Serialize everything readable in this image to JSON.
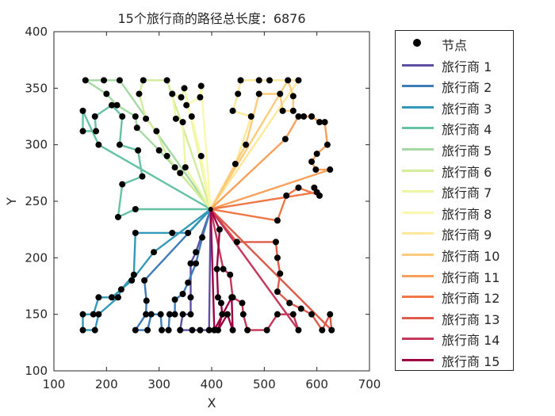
{
  "chart_data": {
    "type": "line",
    "title": "15个旅行商的路径总长度：6876",
    "xlabel": "X",
    "ylabel": "Y",
    "xlim": [
      100,
      700
    ],
    "ylim": [
      100,
      400
    ],
    "xticks": [
      100,
      200,
      300,
      400,
      500,
      600,
      700
    ],
    "yticks": [
      100,
      150,
      200,
      250,
      300,
      350,
      400
    ],
    "depot": [
      398,
      243
    ],
    "legend_position": "outside-right",
    "legend_node_label": "节点",
    "series": [
      {
        "name": "旅行商 1",
        "color": "#5e4fa2",
        "points": [
          [
            398,
            243
          ],
          [
            370,
            205
          ],
          [
            360,
            195
          ],
          [
            360,
            165
          ],
          [
            360,
            150
          ],
          [
            345,
            150
          ],
          [
            340,
            136
          ],
          [
            363,
            136
          ],
          [
            378,
            136
          ],
          [
            395,
            136
          ],
          [
            398,
            243
          ]
        ]
      },
      {
        "name": "旅行商 2",
        "color": "#3d7cb9",
        "points": [
          [
            398,
            243
          ],
          [
            382,
            218
          ],
          [
            370,
            195
          ],
          [
            355,
            178
          ],
          [
            345,
            168
          ],
          [
            330,
            163
          ],
          [
            330,
            150
          ],
          [
            320,
            150
          ],
          [
            318,
            136
          ],
          [
            305,
            136
          ],
          [
            303,
            150
          ],
          [
            285,
            150
          ],
          [
            278,
            136
          ],
          [
            255,
            136
          ],
          [
            275,
            150
          ],
          [
            276,
            162
          ],
          [
            272,
            180
          ],
          [
            398,
            243
          ]
        ]
      },
      {
        "name": "旅行商 3",
        "color": "#3498b8",
        "points": [
          [
            398,
            243
          ],
          [
            355,
            222
          ],
          [
            325,
            222
          ],
          [
            255,
            222
          ],
          [
            252,
            185
          ],
          [
            228,
            172
          ],
          [
            222,
            165
          ],
          [
            185,
            150
          ],
          [
            178,
            136
          ],
          [
            155,
            136
          ],
          [
            155,
            150
          ],
          [
            175,
            150
          ],
          [
            185,
            165
          ],
          [
            210,
            165
          ],
          [
            248,
            180
          ],
          [
            290,
            205
          ],
          [
            398,
            243
          ]
        ]
      },
      {
        "name": "旅行商 4",
        "color": "#66c2a5",
        "points": [
          [
            398,
            243
          ],
          [
            255,
            243
          ],
          [
            222,
            236
          ],
          [
            230,
            265
          ],
          [
            268,
            272
          ],
          [
            260,
            295
          ],
          [
            225,
            300
          ],
          [
            230,
            325
          ],
          [
            210,
            335
          ],
          [
            178,
            325
          ],
          [
            180,
            312
          ],
          [
            155,
            312
          ],
          [
            155,
            330
          ],
          [
            185,
            300
          ],
          [
            398,
            243
          ]
        ]
      },
      {
        "name": "旅行商 5",
        "color": "#a5d9a4",
        "points": [
          [
            398,
            243
          ],
          [
            330,
            280
          ],
          [
            300,
            295
          ],
          [
            258,
            315
          ],
          [
            255,
            325
          ],
          [
            220,
            335
          ],
          [
            200,
            345
          ],
          [
            160,
            357
          ],
          [
            195,
            357
          ],
          [
            225,
            357
          ],
          [
            398,
            243
          ]
        ]
      },
      {
        "name": "旅行商 6",
        "color": "#d3ec9c",
        "points": [
          [
            398,
            243
          ],
          [
            340,
            275
          ],
          [
            315,
            290
          ],
          [
            295,
            312
          ],
          [
            275,
            323
          ],
          [
            262,
            345
          ],
          [
            270,
            357
          ],
          [
            315,
            357
          ],
          [
            398,
            243
          ]
        ]
      },
      {
        "name": "旅行商 7",
        "color": "#edf6a4",
        "points": [
          [
            398,
            243
          ],
          [
            350,
            280
          ],
          [
            345,
            320
          ],
          [
            332,
            323
          ],
          [
            325,
            345
          ],
          [
            342,
            342
          ],
          [
            348,
            350
          ],
          [
            398,
            243
          ]
        ]
      },
      {
        "name": "旅行商 8",
        "color": "#fbf8b0",
        "points": [
          [
            398,
            243
          ],
          [
            380,
            290
          ],
          [
            362,
            325
          ],
          [
            352,
            335
          ],
          [
            378,
            342
          ],
          [
            380,
            352
          ],
          [
            398,
            243
          ]
        ]
      },
      {
        "name": "旅行商 9",
        "color": "#fee89a",
        "points": [
          [
            398,
            243
          ],
          [
            445,
            283
          ],
          [
            475,
            325
          ],
          [
            440,
            330
          ],
          [
            450,
            345
          ],
          [
            455,
            357
          ],
          [
            490,
            357
          ],
          [
            510,
            357
          ],
          [
            565,
            357
          ],
          [
            398,
            243
          ]
        ]
      },
      {
        "name": "旅行商 10",
        "color": "#fdcb7a",
        "points": [
          [
            398,
            243
          ],
          [
            465,
            300
          ],
          [
            490,
            345
          ],
          [
            530,
            345
          ],
          [
            535,
            330
          ],
          [
            555,
            330
          ],
          [
            555,
            343
          ],
          [
            545,
            357
          ],
          [
            398,
            243
          ]
        ]
      },
      {
        "name": "旅行商 11",
        "color": "#f9a15b",
        "points": [
          [
            398,
            243
          ],
          [
            540,
            305
          ],
          [
            565,
            325
          ],
          [
            575,
            325
          ],
          [
            590,
            325
          ],
          [
            605,
            320
          ],
          [
            615,
            320
          ],
          [
            620,
            300
          ],
          [
            600,
            292
          ],
          [
            590,
            285
          ],
          [
            598,
            278
          ],
          [
            625,
            278
          ],
          [
            398,
            243
          ]
        ]
      },
      {
        "name": "旅行商 12",
        "color": "#f07646",
        "points": [
          [
            398,
            243
          ],
          [
            525,
            233
          ],
          [
            542,
            255
          ],
          [
            565,
            262
          ],
          [
            605,
            255
          ],
          [
            595,
            262
          ],
          [
            600,
            258
          ],
          [
            398,
            243
          ]
        ]
      },
      {
        "name": "旅行商 13",
        "color": "#df5b4b",
        "points": [
          [
            398,
            243
          ],
          [
            448,
            214
          ],
          [
            522,
            214
          ],
          [
            525,
            200
          ],
          [
            530,
            186
          ],
          [
            525,
            170
          ],
          [
            548,
            160
          ],
          [
            570,
            155
          ],
          [
            590,
            150
          ],
          [
            610,
            136
          ],
          [
            625,
            150
          ],
          [
            628,
            136
          ],
          [
            398,
            243
          ]
        ]
      },
      {
        "name": "旅行商 14",
        "color": "#c4365a",
        "points": [
          [
            398,
            243
          ],
          [
            422,
            190
          ],
          [
            435,
            185
          ],
          [
            440,
            165
          ],
          [
            458,
            160
          ],
          [
            460,
            150
          ],
          [
            468,
            136
          ],
          [
            505,
            136
          ],
          [
            525,
            150
          ],
          [
            555,
            150
          ],
          [
            565,
            136
          ],
          [
            398,
            243
          ]
        ]
      },
      {
        "name": "旅行商 15",
        "color": "#9e0142",
        "points": [
          [
            398,
            243
          ],
          [
            415,
            225
          ],
          [
            410,
            190
          ],
          [
            412,
            165
          ],
          [
            418,
            160
          ],
          [
            420,
            150
          ],
          [
            412,
            136
          ],
          [
            430,
            150
          ],
          [
            440,
            136
          ],
          [
            438,
            165
          ],
          [
            405,
            136
          ],
          [
            398,
            243
          ]
        ]
      }
    ]
  }
}
